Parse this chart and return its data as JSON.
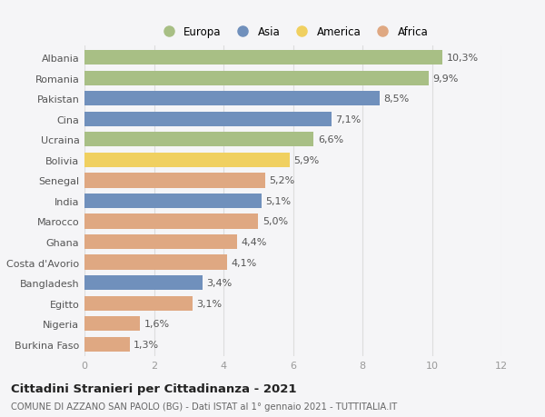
{
  "countries": [
    "Albania",
    "Romania",
    "Pakistan",
    "Cina",
    "Ucraina",
    "Bolivia",
    "Senegal",
    "India",
    "Marocco",
    "Ghana",
    "Costa d'Avorio",
    "Bangladesh",
    "Egitto",
    "Nigeria",
    "Burkina Faso"
  ],
  "values": [
    10.3,
    9.9,
    8.5,
    7.1,
    6.6,
    5.9,
    5.2,
    5.1,
    5.0,
    4.4,
    4.1,
    3.4,
    3.1,
    1.6,
    1.3
  ],
  "labels": [
    "10,3%",
    "9,9%",
    "8,5%",
    "7,1%",
    "6,6%",
    "5,9%",
    "5,2%",
    "5,1%",
    "5,0%",
    "4,4%",
    "4,1%",
    "3,4%",
    "3,1%",
    "1,6%",
    "1,3%"
  ],
  "continents": [
    "Europa",
    "Europa",
    "Asia",
    "Asia",
    "Europa",
    "America",
    "Africa",
    "Asia",
    "Africa",
    "Africa",
    "Africa",
    "Asia",
    "Africa",
    "Africa",
    "Africa"
  ],
  "colors": {
    "Europa": "#a8bf85",
    "Asia": "#7090bc",
    "America": "#f0d060",
    "Africa": "#dfa882"
  },
  "xlim": [
    0,
    12
  ],
  "xticks": [
    0,
    2,
    4,
    6,
    8,
    10,
    12
  ],
  "legend_order": [
    "Europa",
    "Asia",
    "America",
    "Africa"
  ],
  "title_bold": "Cittadini Stranieri per Cittadinanza - 2021",
  "subtitle": "COMUNE DI AZZANO SAN PAOLO (BG) - Dati ISTAT al 1° gennaio 2021 - TUTTITALIA.IT",
  "background_color": "#f5f5f7",
  "plot_bg_color": "#f5f5f7",
  "grid_color": "#dddddd",
  "bar_height": 0.72,
  "label_fontsize": 8.0,
  "tick_fontsize": 8.0,
  "title_fontsize": 9.5,
  "subtitle_fontsize": 7.2,
  "label_color": "#555555",
  "tick_color": "#555555",
  "xtick_color": "#999999"
}
